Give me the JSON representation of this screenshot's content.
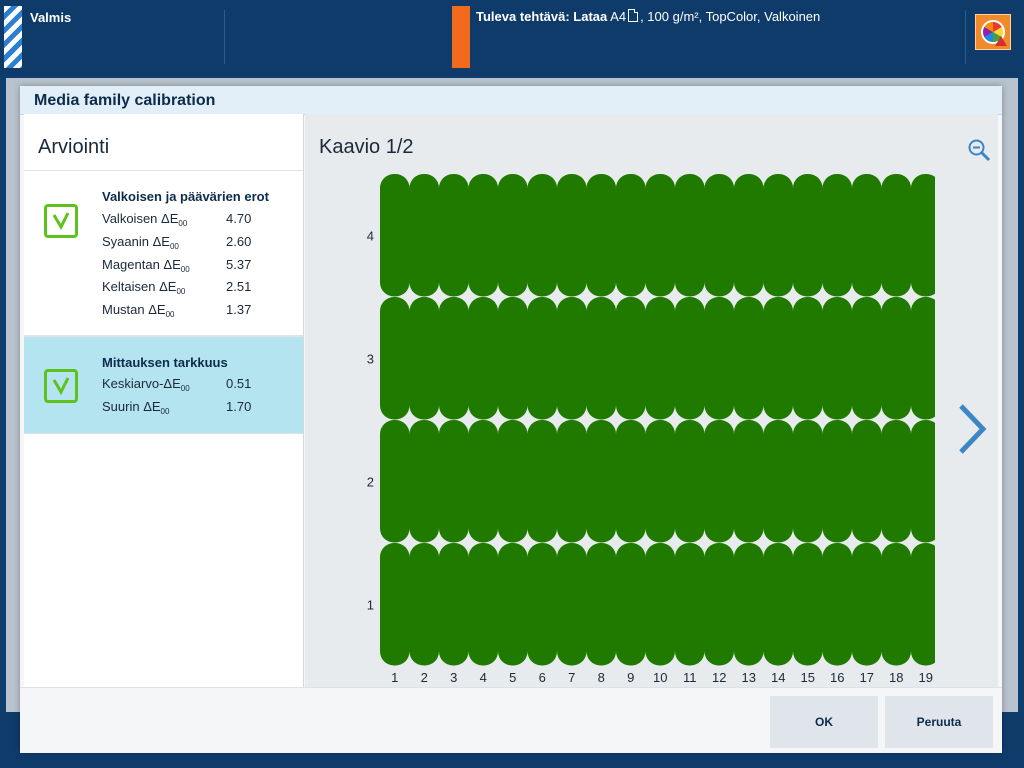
{
  "topbar": {
    "status": "Valmis",
    "upcoming_label": "Tuleva tehtävä: Lataa",
    "upcoming_size": "A4",
    "upcoming_details": ", 100 g/m², TopColor, Valkoinen",
    "printer_status_icon": "color-wheel-warning-icon"
  },
  "dialog": {
    "title": "Media family calibration",
    "left": {
      "title": "Arviointi",
      "group1": {
        "title": "Valkoisen ja päävärien erot",
        "status": "ok",
        "rows": [
          {
            "label": "Valkoisen ΔE",
            "sub": "00",
            "value": "4.70"
          },
          {
            "label": "Syaanin ΔE",
            "sub": "00",
            "value": "2.60"
          },
          {
            "label": "Magentan ΔE",
            "sub": "00",
            "value": "5.37"
          },
          {
            "label": "Keltaisen ΔE",
            "sub": "00",
            "value": "2.51"
          },
          {
            "label": "Mustan ΔE",
            "sub": "00",
            "value": "1.37"
          }
        ]
      },
      "group2": {
        "title": "Mittauksen tarkkuus",
        "status": "ok",
        "rows": [
          {
            "label": "Keskiarvo-ΔE",
            "sub": "00",
            "value": "0.51"
          },
          {
            "label": "Suurin ΔE",
            "sub": "00",
            "value": "1.70"
          }
        ]
      }
    },
    "right": {
      "title": "Kaavio 1/2",
      "zoom_icon": "zoom-out-icon",
      "next_icon": "chevron-right-icon"
    },
    "buttons": {
      "ok": "OK",
      "cancel": "Peruuta"
    }
  },
  "chart_data": {
    "type": "heatmap",
    "x": [
      "1",
      "2",
      "3",
      "4",
      "5",
      "6",
      "7",
      "8",
      "9",
      "10",
      "11",
      "12",
      "13",
      "14",
      "15",
      "16",
      "17",
      "18",
      "19"
    ],
    "y": [
      "1",
      "2",
      "3",
      "4"
    ],
    "cell_color": "#217a00",
    "cell_status": "pass",
    "grid": false
  }
}
